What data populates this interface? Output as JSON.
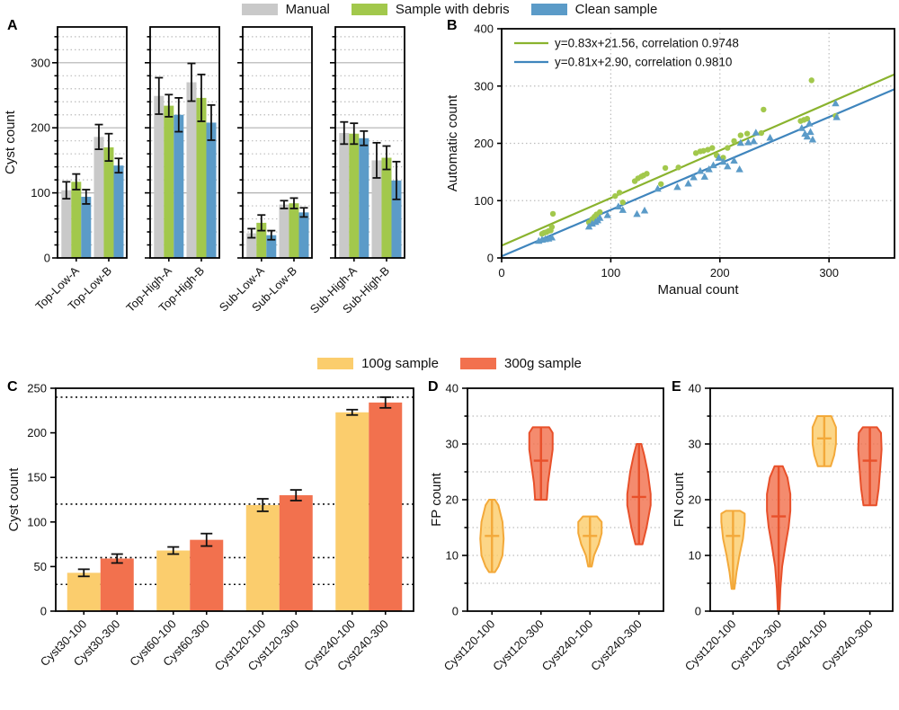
{
  "colors": {
    "manual": "#c9c9c9",
    "debris": "#a2c84c",
    "clean": "#5b9bc8",
    "debris_line": "#8ab32e",
    "clean_line": "#3f85bd",
    "sample100": "#fbcd6d",
    "sample300": "#f2714e",
    "sample100_edge": "#f3a93a",
    "sample300_edge": "#e8502a"
  },
  "legend_top": {
    "items": [
      {
        "label": "Manual",
        "color": "manual"
      },
      {
        "label": "Sample with debris",
        "color": "debris"
      },
      {
        "label": "Clean sample",
        "color": "clean"
      }
    ]
  },
  "legend_bottom": {
    "items": [
      {
        "label": "100g sample",
        "color": "sample100"
      },
      {
        "label": "300g sample",
        "color": "sample300"
      }
    ]
  },
  "chart_data": [
    {
      "panel": "A",
      "type": "bar",
      "ylabel": "Cyst count",
      "ylim": [
        0,
        355
      ],
      "yticks": [
        0,
        100,
        200,
        300
      ],
      "minor_step": 20,
      "solid_gridlines": [
        100,
        200,
        300
      ],
      "series": [
        "Manual",
        "Sample with debris",
        "Clean sample"
      ],
      "series_colors": [
        "manual",
        "debris",
        "clean"
      ],
      "subpanels": [
        {
          "categories": [
            "Top-Low-A",
            "Top-Low-B"
          ],
          "values": [
            [
              104,
              186
            ],
            [
              117,
              170
            ],
            [
              94,
              142
            ]
          ],
          "errors": [
            [
              13,
              19
            ],
            [
              12,
              21
            ],
            [
              11,
              11
            ]
          ]
        },
        {
          "categories": [
            "Top-High-A",
            "Top-High-B"
          ],
          "values": [
            [
              249,
              270
            ],
            [
              234,
              246
            ],
            [
              220,
              208
            ]
          ],
          "errors": [
            [
              28,
              29
            ],
            [
              17,
              36
            ],
            [
              26,
              27
            ]
          ]
        },
        {
          "categories": [
            "Sub-Low-A",
            "Sub-Low-B"
          ],
          "values": [
            [
              38,
              82
            ],
            [
              54,
              84
            ],
            [
              35,
              70
            ]
          ],
          "errors": [
            [
              7,
              6
            ],
            [
              12,
              8
            ],
            [
              7,
              7
            ]
          ]
        },
        {
          "categories": [
            "Sub-High-A",
            "Sub-High-B"
          ],
          "values": [
            [
              192,
              150
            ],
            [
              191,
              154
            ],
            [
              184,
              119
            ]
          ],
          "errors": [
            [
              17,
              27
            ],
            [
              16,
              18
            ],
            [
              11,
              29
            ]
          ]
        }
      ]
    },
    {
      "panel": "B",
      "type": "scatter",
      "xlabel": "Manual count",
      "ylabel": "Automatic count",
      "xlim": [
        0,
        360
      ],
      "ylim": [
        0,
        400
      ],
      "xticks": [
        0,
        100,
        200,
        300
      ],
      "yticks": [
        0,
        100,
        200,
        300,
        400
      ],
      "fit_lines": [
        {
          "label": "y=0.83x+21.56, correlation 0.9748",
          "slope": 0.83,
          "intercept": 21.56,
          "color": "debris_line"
        },
        {
          "label": "y=0.81x+2.90, correlation 0.9810",
          "slope": 0.81,
          "intercept": 2.9,
          "color": "clean_line"
        }
      ],
      "series": [
        {
          "name": "Sample with debris",
          "marker": "circle",
          "color": "debris",
          "points": [
            [
              37,
              42
            ],
            [
              39,
              44
            ],
            [
              41,
              45
            ],
            [
              43,
              47
            ],
            [
              45,
              48
            ],
            [
              46,
              54
            ],
            [
              47,
              77
            ],
            [
              80,
              62
            ],
            [
              83,
              68
            ],
            [
              85,
              72
            ],
            [
              87,
              76
            ],
            [
              90,
              80
            ],
            [
              104,
              108
            ],
            [
              108,
              114
            ],
            [
              111,
              97
            ],
            [
              122,
              134
            ],
            [
              125,
              139
            ],
            [
              128,
              142
            ],
            [
              130,
              144
            ],
            [
              133,
              147
            ],
            [
              146,
              129
            ],
            [
              150,
              157
            ],
            [
              162,
              158
            ],
            [
              178,
              183
            ],
            [
              182,
              186
            ],
            [
              185,
              187
            ],
            [
              189,
              189
            ],
            [
              193,
              192
            ],
            [
              197,
              179
            ],
            [
              203,
              175
            ],
            [
              207,
              192
            ],
            [
              213,
              204
            ],
            [
              219,
              214
            ],
            [
              225,
              217
            ],
            [
              238,
              218
            ],
            [
              240,
              259
            ],
            [
              274,
              239
            ],
            [
              277,
              241
            ],
            [
              280,
              243
            ],
            [
              284,
              310
            ],
            [
              306,
              248
            ]
          ]
        },
        {
          "name": "Clean sample",
          "marker": "triangle",
          "color": "clean",
          "points": [
            [
              34,
              30
            ],
            [
              37,
              32
            ],
            [
              40,
              33
            ],
            [
              43,
              34
            ],
            [
              46,
              36
            ],
            [
              80,
              55
            ],
            [
              83,
              60
            ],
            [
              86,
              63
            ],
            [
              88,
              66
            ],
            [
              90,
              70
            ],
            [
              97,
              75
            ],
            [
              107,
              90
            ],
            [
              111,
              84
            ],
            [
              124,
              77
            ],
            [
              131,
              83
            ],
            [
              143,
              121
            ],
            [
              161,
              124
            ],
            [
              171,
              130
            ],
            [
              176,
              141
            ],
            [
              182,
              152
            ],
            [
              186,
              142
            ],
            [
              190,
              155
            ],
            [
              194,
              162
            ],
            [
              199,
              175
            ],
            [
              203,
              168
            ],
            [
              207,
              160
            ],
            [
              213,
              170
            ],
            [
              218,
              155
            ],
            [
              219,
              201
            ],
            [
              226,
              202
            ],
            [
              231,
              204
            ],
            [
              233,
              219
            ],
            [
              246,
              210
            ],
            [
              275,
              227
            ],
            [
              278,
              217
            ],
            [
              280,
              212
            ],
            [
              282,
              235
            ],
            [
              283,
              220
            ],
            [
              285,
              207
            ],
            [
              306,
              270
            ],
            [
              307,
              246
            ]
          ]
        }
      ]
    },
    {
      "panel": "C",
      "type": "bar",
      "ylabel": "Cyst count",
      "ylim": [
        0,
        250
      ],
      "yticks": [
        0,
        50,
        100,
        150,
        200,
        250
      ],
      "reference_lines": [
        30,
        60,
        120,
        240
      ],
      "series": [
        "100g sample",
        "300g sample"
      ],
      "bar_colors": [
        "sample100",
        "sample300"
      ],
      "categories": [
        "Cyst30-100",
        "Cyst30-300",
        "Cyst60-100",
        "Cyst60-300",
        "Cyst120-100",
        "Cyst120-300",
        "Cyst240-100",
        "Cyst240-300"
      ],
      "values": [
        43,
        59,
        68,
        80,
        119,
        130,
        223,
        234
      ],
      "errors": [
        4,
        5,
        4,
        7,
        7,
        6,
        3,
        6
      ]
    },
    {
      "panel": "D",
      "type": "violin",
      "ylabel": "FP count",
      "ylim": [
        0,
        40
      ],
      "yticks": [
        0,
        10,
        20,
        30,
        40
      ],
      "minor_step": 5,
      "categories": [
        "Cyst120-100",
        "Cyst120-300",
        "Cyst240-100",
        "Cyst240-300"
      ],
      "violins": [
        {
          "color": "sample100",
          "min": 7,
          "max": 20,
          "median": 13.5,
          "profile": [
            [
              7,
              0.25
            ],
            [
              8,
              0.55
            ],
            [
              10,
              0.9
            ],
            [
              13,
              1.0
            ],
            [
              16,
              0.9
            ],
            [
              19,
              0.55
            ],
            [
              20,
              0.25
            ]
          ]
        },
        {
          "color": "sample300",
          "min": 20,
          "max": 33,
          "median": 27,
          "profile": [
            [
              20,
              0.5
            ],
            [
              23,
              0.6
            ],
            [
              26,
              0.8
            ],
            [
              29,
              1.0
            ],
            [
              32,
              1.0
            ],
            [
              33,
              0.7
            ]
          ]
        },
        {
          "color": "sample100",
          "min": 8,
          "max": 17,
          "median": 13.5,
          "profile": [
            [
              8,
              0.15
            ],
            [
              10,
              0.35
            ],
            [
              12,
              0.75
            ],
            [
              14,
              1.0
            ],
            [
              16,
              1.0
            ],
            [
              17,
              0.6
            ]
          ]
        },
        {
          "color": "sample300",
          "min": 12,
          "max": 30,
          "median": 20.5,
          "profile": [
            [
              12,
              0.3
            ],
            [
              15,
              0.65
            ],
            [
              19,
              1.0
            ],
            [
              21,
              1.0
            ],
            [
              25,
              0.75
            ],
            [
              28,
              0.45
            ],
            [
              30,
              0.2
            ]
          ]
        }
      ]
    },
    {
      "panel": "E",
      "type": "violin",
      "ylabel": "FN count",
      "ylim": [
        0,
        40
      ],
      "yticks": [
        0,
        10,
        20,
        30,
        40
      ],
      "minor_step": 5,
      "categories": [
        "Cyst120-100",
        "Cyst120-300",
        "Cyst240-100",
        "Cyst240-300"
      ],
      "violins": [
        {
          "color": "sample100",
          "min": 4,
          "max": 18,
          "median": 13.5,
          "profile": [
            [
              4,
              0.12
            ],
            [
              7,
              0.3
            ],
            [
              10,
              0.55
            ],
            [
              13,
              0.85
            ],
            [
              16,
              1.0
            ],
            [
              17.5,
              1.0
            ],
            [
              18,
              0.6
            ]
          ]
        },
        {
          "color": "sample300",
          "min": 0,
          "max": 26,
          "median": 17,
          "profile": [
            [
              0,
              0.07
            ],
            [
              4,
              0.15
            ],
            [
              8,
              0.3
            ],
            [
              12,
              0.6
            ],
            [
              15,
              0.85
            ],
            [
              18,
              1.0
            ],
            [
              21,
              1.0
            ],
            [
              24,
              0.75
            ],
            [
              26,
              0.35
            ]
          ]
        },
        {
          "color": "sample100",
          "min": 26,
          "max": 35,
          "median": 31,
          "profile": [
            [
              26,
              0.55
            ],
            [
              28,
              0.85
            ],
            [
              30,
              1.0
            ],
            [
              33,
              1.0
            ],
            [
              35,
              0.6
            ]
          ]
        },
        {
          "color": "sample300",
          "min": 19,
          "max": 33,
          "median": 27,
          "profile": [
            [
              19,
              0.55
            ],
            [
              22,
              0.75
            ],
            [
              26,
              0.9
            ],
            [
              29,
              1.0
            ],
            [
              32,
              0.95
            ],
            [
              33,
              0.6
            ]
          ]
        }
      ]
    }
  ]
}
